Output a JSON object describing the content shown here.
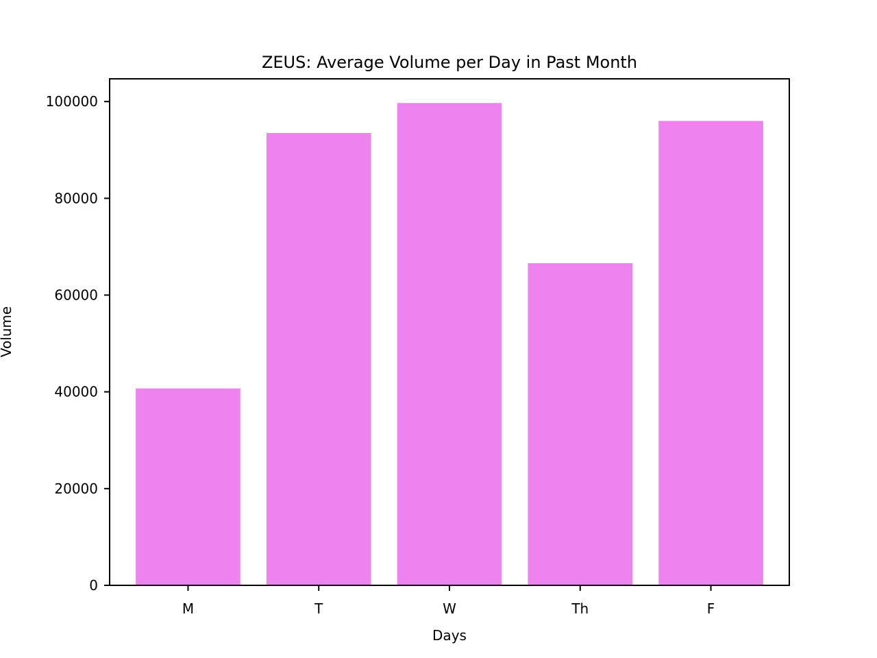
{
  "chart_data": {
    "type": "bar",
    "title": "ZEUS: Average Volume per Day in Past Month",
    "xlabel": "Days",
    "ylabel": "Volume",
    "categories": [
      "M",
      "T",
      "W",
      "Th",
      "F"
    ],
    "values": [
      40700,
      93500,
      99700,
      66600,
      96000
    ],
    "ylim": [
      0,
      104700
    ],
    "yticks": [
      0,
      20000,
      40000,
      60000,
      80000,
      100000
    ],
    "bar_color": "#ee82ee",
    "grid": false,
    "legend": "none"
  }
}
